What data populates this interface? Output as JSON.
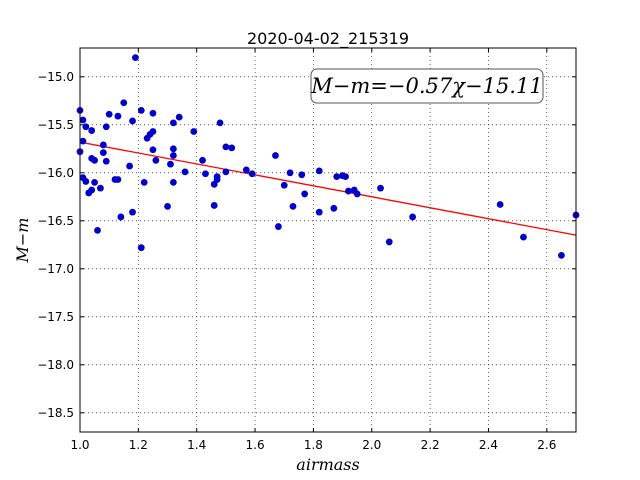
{
  "chart_data": {
    "type": "scatter",
    "title": "2020-04-02_215319",
    "xlabel": "airmass",
    "ylabel": "M−m",
    "xlim": [
      1.0,
      2.7
    ],
    "ylim": [
      -14.7,
      -18.7
    ],
    "y_inverted": true,
    "grid": true,
    "x_ticks": [
      "1.0",
      "1.2",
      "1.4",
      "1.6",
      "1.8",
      "2.0",
      "2.2",
      "2.4",
      "2.6"
    ],
    "y_ticks": [
      "−15.0",
      "−15.5",
      "−16.0",
      "−16.5",
      "−17.0",
      "−17.5",
      "−18.0",
      "−18.5"
    ],
    "annotation": "M−m=−0.57χ−15.11",
    "fit_line": {
      "slope": -0.57,
      "intercept": -15.11,
      "color": "#ff0000"
    },
    "point_color": "#0000cc",
    "points": [
      [
        1.0,
        -15.35
      ],
      [
        1.0,
        -15.78
      ],
      [
        1.01,
        -15.45
      ],
      [
        1.01,
        -15.67
      ],
      [
        1.01,
        -16.05
      ],
      [
        1.02,
        -15.52
      ],
      [
        1.02,
        -16.09
      ],
      [
        1.03,
        -16.21
      ],
      [
        1.04,
        -15.56
      ],
      [
        1.04,
        -16.18
      ],
      [
        1.04,
        -15.85
      ],
      [
        1.05,
        -15.87
      ],
      [
        1.05,
        -16.1
      ],
      [
        1.06,
        -16.6
      ],
      [
        1.07,
        -16.16
      ],
      [
        1.08,
        -15.71
      ],
      [
        1.08,
        -15.79
      ],
      [
        1.09,
        -15.88
      ],
      [
        1.09,
        -15.52
      ],
      [
        1.1,
        -15.39
      ],
      [
        1.12,
        -16.07
      ],
      [
        1.13,
        -16.07
      ],
      [
        1.13,
        -15.41
      ],
      [
        1.14,
        -16.46
      ],
      [
        1.15,
        -15.27
      ],
      [
        1.17,
        -15.93
      ],
      [
        1.18,
        -15.46
      ],
      [
        1.18,
        -16.41
      ],
      [
        1.19,
        -14.8
      ],
      [
        1.21,
        -15.35
      ],
      [
        1.21,
        -16.78
      ],
      [
        1.22,
        -16.1
      ],
      [
        1.23,
        -15.64
      ],
      [
        1.24,
        -15.6
      ],
      [
        1.25,
        -15.76
      ],
      [
        1.25,
        -15.38
      ],
      [
        1.25,
        -15.57
      ],
      [
        1.26,
        -15.87
      ],
      [
        1.3,
        -16.35
      ],
      [
        1.31,
        -15.91
      ],
      [
        1.32,
        -15.48
      ],
      [
        1.32,
        -15.75
      ],
      [
        1.32,
        -15.82
      ],
      [
        1.32,
        -16.1
      ],
      [
        1.34,
        -15.42
      ],
      [
        1.36,
        -15.99
      ],
      [
        1.39,
        -15.57
      ],
      [
        1.42,
        -15.87
      ],
      [
        1.43,
        -16.01
      ],
      [
        1.46,
        -16.34
      ],
      [
        1.46,
        -16.12
      ],
      [
        1.47,
        -16.04
      ],
      [
        1.47,
        -16.07
      ],
      [
        1.48,
        -15.48
      ],
      [
        1.5,
        -15.73
      ],
      [
        1.5,
        -15.99
      ],
      [
        1.52,
        -15.74
      ],
      [
        1.57,
        -15.97
      ],
      [
        1.59,
        -16.01
      ],
      [
        1.67,
        -15.82
      ],
      [
        1.68,
        -16.56
      ],
      [
        1.7,
        -16.13
      ],
      [
        1.72,
        -16.0
      ],
      [
        1.73,
        -16.35
      ],
      [
        1.76,
        -16.02
      ],
      [
        1.77,
        -16.22
      ],
      [
        1.82,
        -15.98
      ],
      [
        1.82,
        -16.41
      ],
      [
        1.87,
        -16.37
      ],
      [
        1.88,
        -16.04
      ],
      [
        1.9,
        -16.03
      ],
      [
        1.91,
        -16.04
      ],
      [
        1.92,
        -16.19
      ],
      [
        1.94,
        -16.18
      ],
      [
        1.95,
        -16.22
      ],
      [
        2.03,
        -16.16
      ],
      [
        2.06,
        -16.72
      ],
      [
        2.14,
        -16.46
      ],
      [
        2.44,
        -16.33
      ],
      [
        2.52,
        -16.67
      ],
      [
        2.65,
        -16.86
      ],
      [
        2.7,
        -16.44
      ]
    ]
  }
}
